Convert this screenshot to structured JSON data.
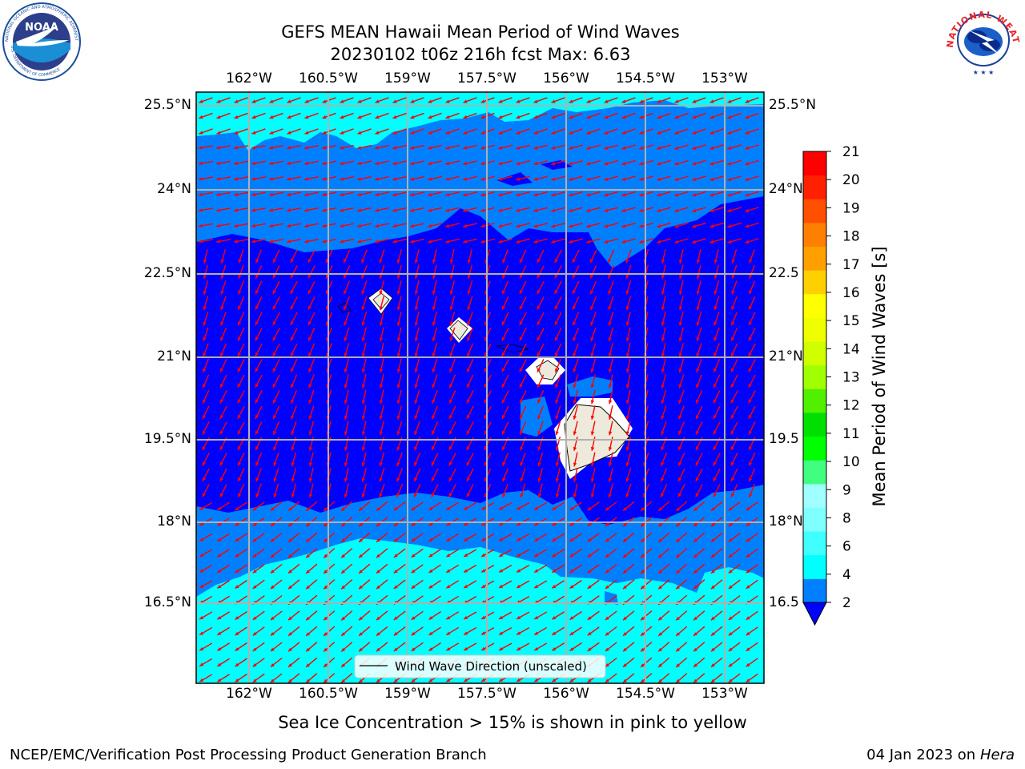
{
  "header": {
    "title_line1": "GEFS MEAN Hawaii Mean Period of Wind Waves",
    "title_line2": "20230102 t06z 216h fcst   Max: 6.63"
  },
  "logos": {
    "noaa_text": "NOAA",
    "noaa_ring_text": "NATIONAL OCEANIC AND ATMOSPHERIC ADMINISTRATION",
    "noaa_bottom_text": "U.S. DEPARTMENT OF COMMERCE",
    "nws_ring_text": "NATIONAL WEATHER SERVICE"
  },
  "map": {
    "lon_ticks": [
      "162°W",
      "160.5°W",
      "159°W",
      "157.5°W",
      "156°W",
      "154.5°W",
      "153°W"
    ],
    "lat_ticks_left": [
      "25.5°N",
      "24°N",
      "22.5°N",
      "21°N",
      "19.5°N",
      "18°N",
      "16.5°N"
    ],
    "lat_ticks_right": [
      "25.5°N",
      "24°N",
      "22.5",
      "21°N",
      "19.5",
      "18°N",
      "16.5"
    ],
    "legend_label": "Wind Wave Direction (unscaled)",
    "arrow_color": "#ff0000"
  },
  "colorbar": {
    "label": "Mean Period of Wind Waves [s]",
    "ticks": [
      "2",
      "4",
      "6",
      "8",
      "9",
      "10",
      "11",
      "12",
      "13",
      "14",
      "15",
      "16",
      "17",
      "18",
      "19",
      "20",
      "21"
    ],
    "colors": [
      "#0080ff",
      "#00ffff",
      "#40ffff",
      "#80ffff",
      "#a0ffff",
      "#40ff80",
      "#00ff00",
      "#00e000",
      "#50f000",
      "#a0ff00",
      "#d0ff00",
      "#f0ff00",
      "#ffff00",
      "#ffd000",
      "#ffa000",
      "#ff8000",
      "#ff5000",
      "#ff2000",
      "#ff0000"
    ],
    "under_color": "#0000ff"
  },
  "footer": {
    "note": "Sea Ice Concentration > 15% is shown in pink to yellow",
    "credit": "NCEP/EMC/Verification Post Processing Product Generation Branch",
    "date": "04 Jan 2023 on ",
    "machine": "Hera"
  }
}
